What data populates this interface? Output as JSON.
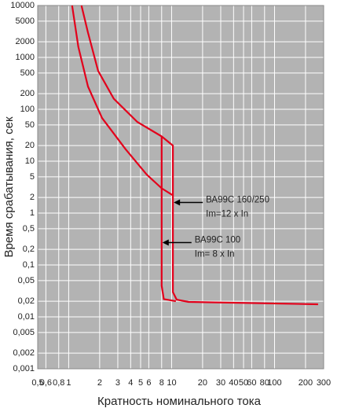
{
  "chart_data": {
    "type": "line",
    "xlabel": "Кратность номинального тока",
    "ylabel": "Время срабатывания, сек",
    "log_x": true,
    "log_y": true,
    "grid": true,
    "background": "#b3b3b3",
    "grid_color": "#ffffff",
    "xlim": [
      0.5,
      300
    ],
    "xticks": [
      {
        "value": 0.5,
        "label": "0,5"
      },
      {
        "value": 0.6,
        "label": "0,6"
      },
      {
        "value": 0.8,
        "label": "0,8"
      },
      1,
      2,
      3,
      4,
      5,
      6,
      8,
      10,
      20,
      30,
      40,
      50,
      60,
      80,
      100,
      200,
      300
    ],
    "ylim": [
      0.001,
      10000
    ],
    "yticks": [
      10000,
      5000,
      2000,
      1000,
      500,
      200,
      100,
      50,
      20,
      10,
      5,
      2,
      1,
      {
        "value": 0.5,
        "label": "0,5"
      },
      {
        "value": 0.2,
        "label": "0,2"
      },
      {
        "value": 0.1,
        "label": "0,1"
      },
      {
        "value": 0.05,
        "label": "0,05"
      },
      {
        "value": 0.02,
        "label": "0,02"
      },
      {
        "value": 0.01,
        "label": "0,01"
      },
      {
        "value": 0.005,
        "label": "0,005"
      },
      {
        "value": 0.002,
        "label": "0,002"
      },
      {
        "value": 0.001,
        "label": "0,001"
      }
    ],
    "series": [
      {
        "color": "#e3001b",
        "x": [
          1.33,
          1.54,
          1.93,
          2.74,
          4.64,
          8,
          10.3,
          10.3,
          11.2,
          14.6,
          265
        ],
        "values": [
          10000,
          3000,
          550,
          160,
          57,
          30,
          20,
          0.03,
          0.0215,
          0.0194,
          0.0175
        ]
      },
      {
        "color": "#e3001b",
        "x": [
          1.08,
          1.24,
          1.54,
          2.11,
          3.57,
          5.73,
          8,
          10.3
        ],
        "values": [
          10000,
          1600,
          275,
          68,
          17,
          5.5,
          3,
          2.2
        ]
      },
      {
        "color": "#e3001b",
        "x": [
          8,
          8,
          8.4,
          11
        ],
        "values": [
          30,
          0.04,
          0.022,
          0.02
        ]
      }
    ],
    "annotations": [
      {
        "lines": [
          "ВА99С 160/250",
          "Im=12 x In"
        ],
        "x": 10.3,
        "y": 1.6
      },
      {
        "lines": [
          "ВА99С 100",
          "Im= 8 x In"
        ],
        "x": 8,
        "y": 0.27
      }
    ]
  }
}
